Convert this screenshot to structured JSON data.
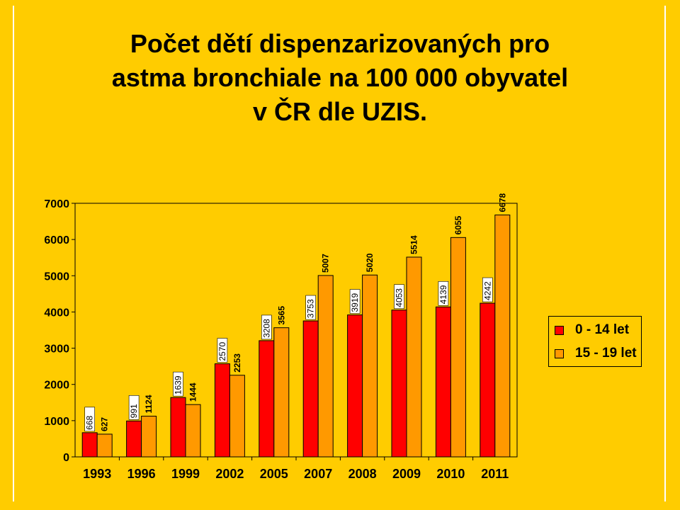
{
  "page": {
    "title_lines": [
      "Počet dětí dispenzarizovaných pro",
      "astma bronchiale na 100 000 obyvatel",
      "v ČR dle UZIS."
    ]
  },
  "chart_data": {
    "type": "bar",
    "title": "Počet dětí dispenzarizovaných pro astma bronchiale na 100 000 obyvatel v ČR dle UZIS.",
    "categories": [
      "1993",
      "1996",
      "1999",
      "2002",
      "2005",
      "2007",
      "2008",
      "2009",
      "2010",
      "2011"
    ],
    "series": [
      {
        "name": "0 - 14 let",
        "color": "#FF0000",
        "values": [
          668,
          991,
          1639,
          2570,
          3208,
          3753,
          3919,
          4053,
          4139,
          4242
        ],
        "labels": [
          "668",
          "991",
          "1639",
          "2570",
          "3208",
          "3753",
          "3919",
          "4053",
          "4139",
          "4242"
        ]
      },
      {
        "name": "15 - 19 let",
        "color": "#FF9900",
        "values": [
          627,
          1124,
          1444,
          2253,
          3565,
          5007,
          5020,
          5514,
          6055,
          6678
        ],
        "labels": [
          "627",
          "1124",
          "1444",
          "2253",
          "3565",
          "5007",
          "5020",
          "5514",
          "6055",
          "6678"
        ]
      }
    ],
    "ylim": [
      0,
      7000
    ],
    "yticks": [
      "0",
      "1000",
      "2000",
      "3000",
      "4000",
      "5000",
      "6000",
      "7000"
    ],
    "grid": false,
    "legend": "right"
  }
}
